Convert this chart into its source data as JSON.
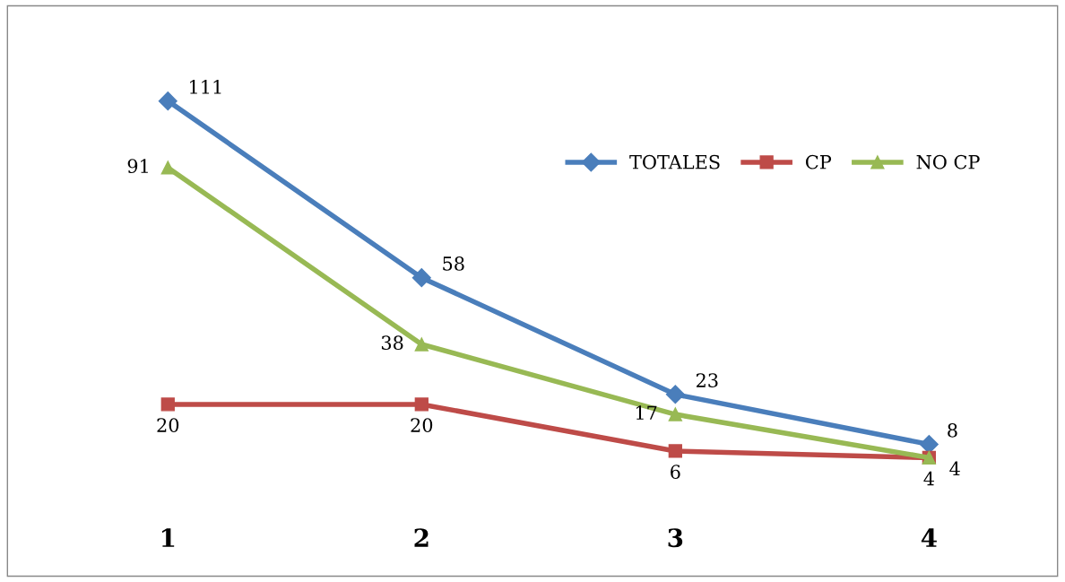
{
  "chart_data": {
    "type": "line",
    "categories": [
      "1",
      "2",
      "3",
      "4"
    ],
    "tick_labels": "x",
    "grid": false,
    "legend": "top right",
    "data_labels": true,
    "line_style": "solid",
    "series": [
      {
        "name": "TOTALES",
        "color": "#4a7ebb",
        "marker": "diamond",
        "values": [
          111,
          58,
          23,
          8
        ]
      },
      {
        "name": "CP",
        "color": "#be4b48",
        "marker": "square",
        "values": [
          20,
          20,
          6,
          4
        ]
      },
      {
        "name": "NO CP",
        "color": "#98b954",
        "marker": "triangle",
        "values": [
          91,
          38,
          17,
          4
        ]
      }
    ]
  }
}
